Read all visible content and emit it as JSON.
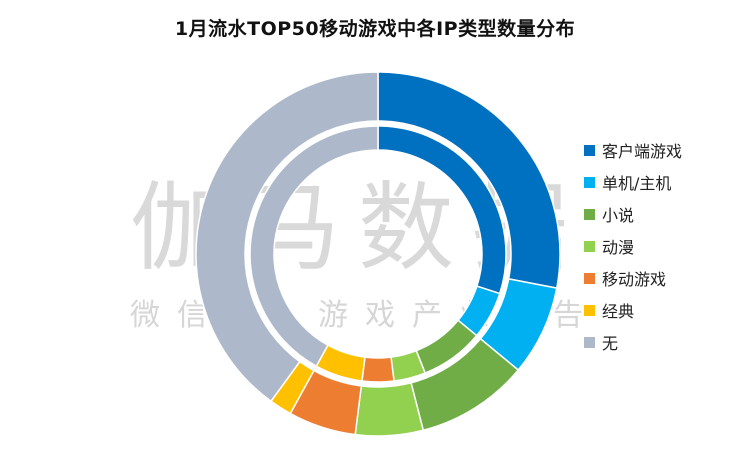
{
  "chart_data": {
    "type": "pie",
    "subtype": "double-donut",
    "title": "1月流水TOP50移动游戏中各IP类型数量分布",
    "categories": [
      "客户端游戏",
      "单机/主机",
      "小说",
      "动漫",
      "移动游戏",
      "经典",
      "无"
    ],
    "colors": [
      "#0070c0",
      "#00b0f0",
      "#70ad47",
      "#92d050",
      "#ed7d31",
      "#ffc000",
      "#adb9ca"
    ],
    "series": [
      {
        "ring": "outer",
        "values": [
          14,
          4,
          5,
          3,
          3,
          1,
          20
        ]
      },
      {
        "ring": "inner",
        "values": [
          15,
          3,
          4,
          2,
          2,
          3,
          21
        ]
      }
    ],
    "legend_position": "right"
  },
  "watermark": {
    "main": "伽马数据",
    "sub": "微信号：游戏产业报告"
  }
}
